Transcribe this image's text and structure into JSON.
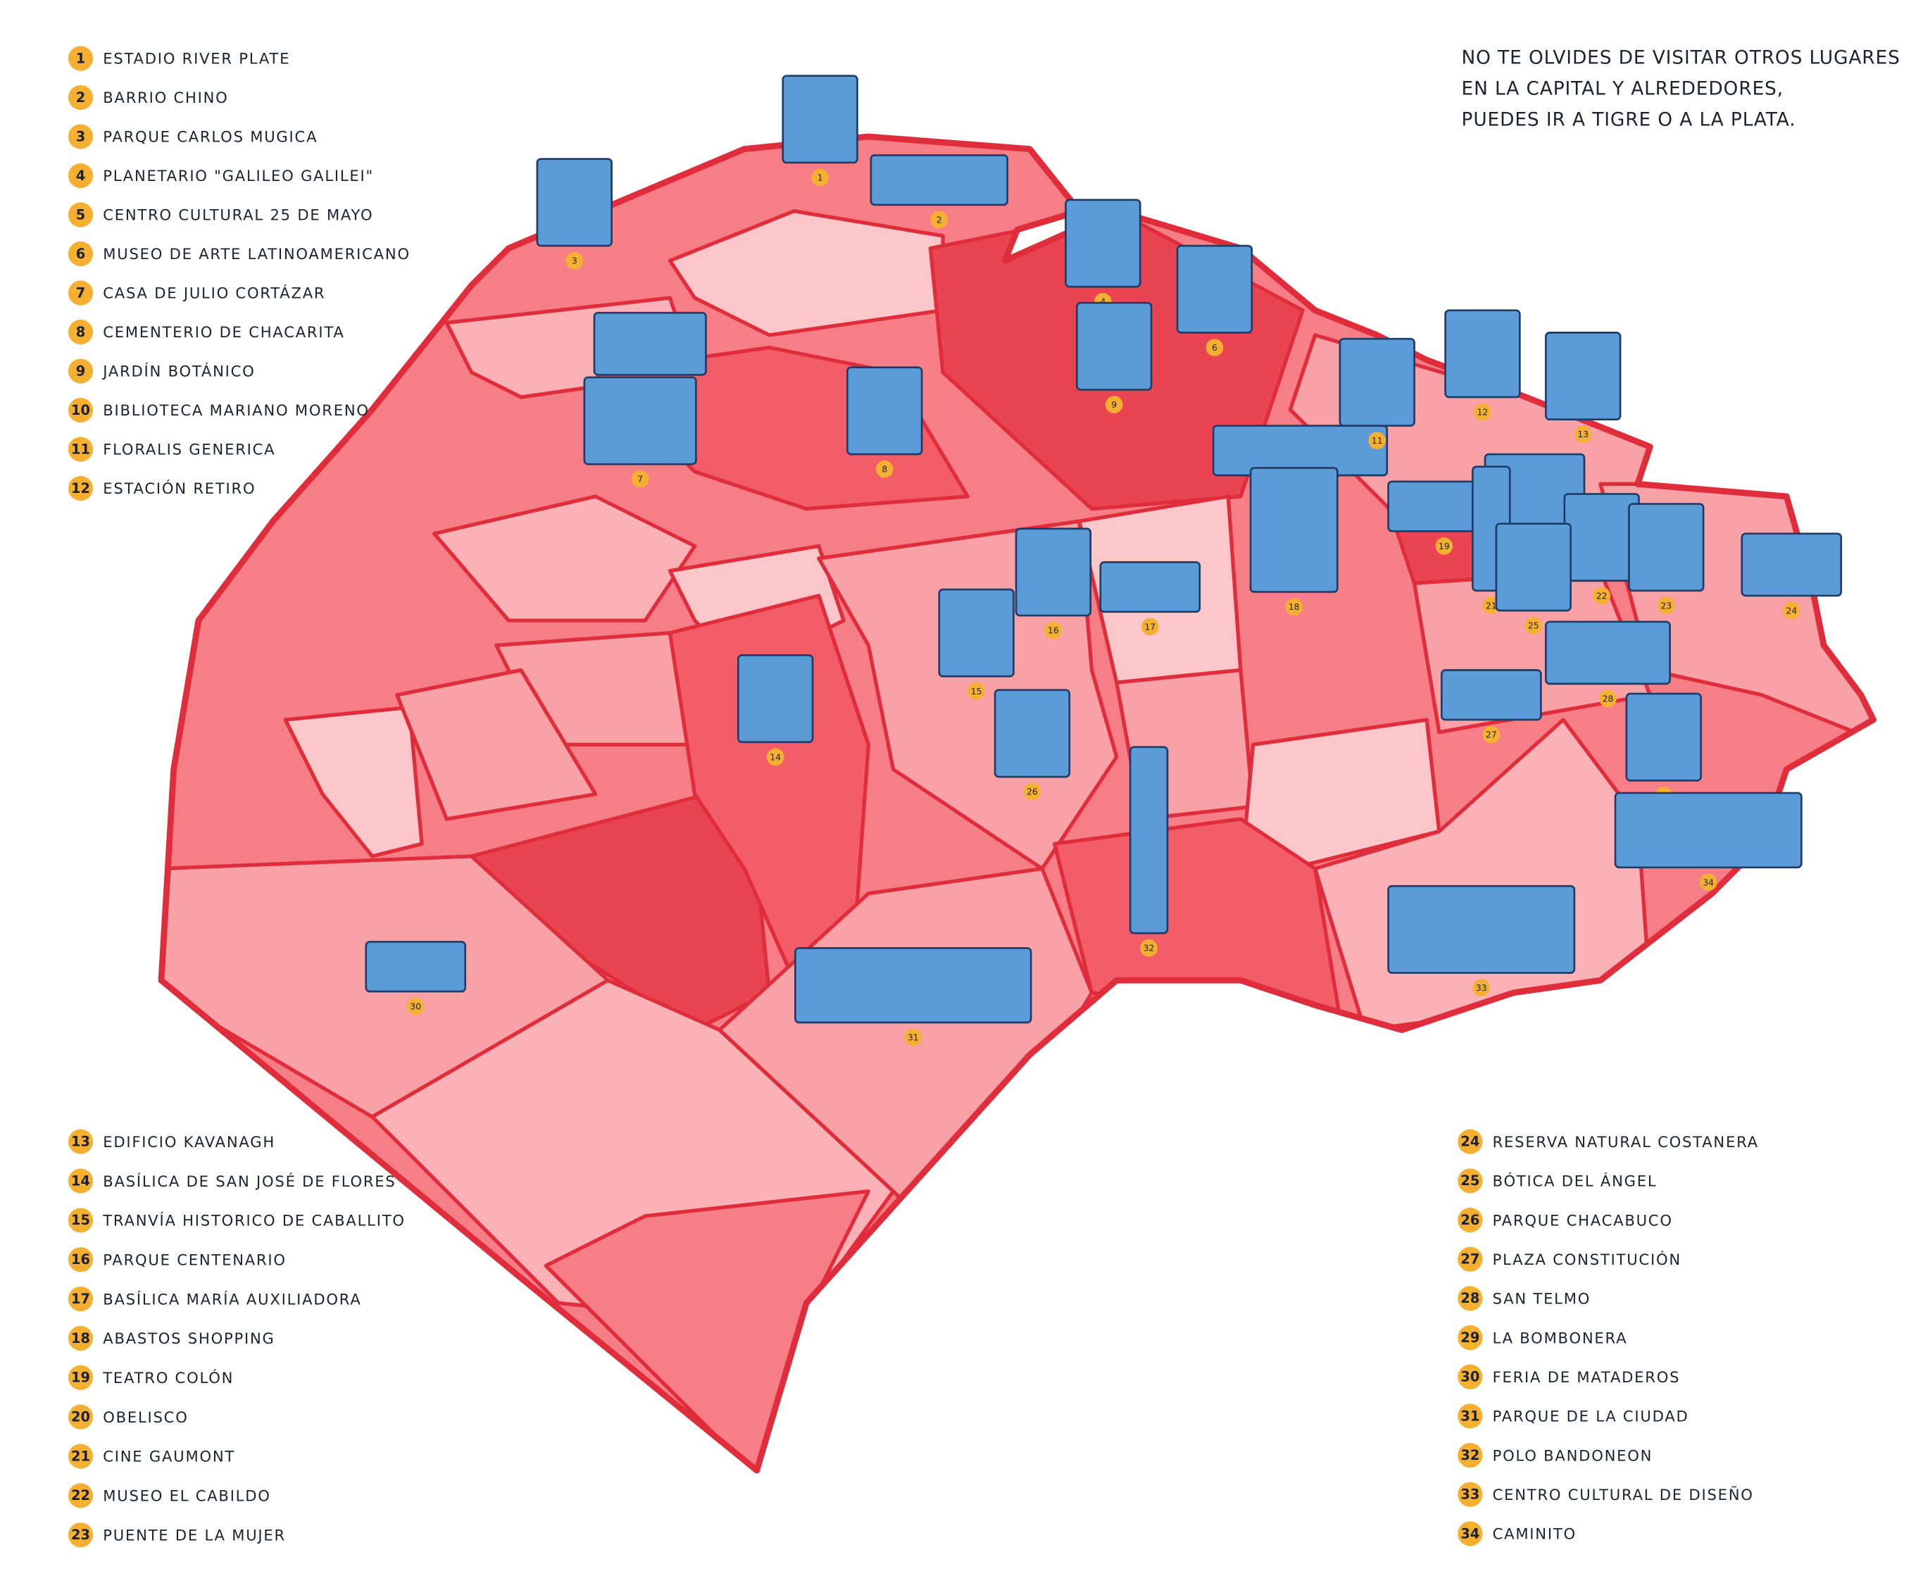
{
  "note": [
    "NO TE OLVIDES DE VISITAR OTROS LUGARES",
    "EN LA CAPITAL Y ALREDEDORES,",
    "PUEDES IR A TIGRE O A LA PLATA."
  ],
  "legend": [
    {
      "number": "1",
      "label": "ESTADIO RIVER PLATE"
    },
    {
      "number": "2",
      "label": "BARRIO CHINO"
    },
    {
      "number": "3",
      "label": "PARQUE CARLOS MUGICA"
    },
    {
      "number": "4",
      "label": "PLANETARIO \"GALILEO GALILEI\""
    },
    {
      "number": "5",
      "label": "CENTRO CULTURAL 25 DE MAYO"
    },
    {
      "number": "6",
      "label": "MUSEO DE ARTE LATINOAMERICANO"
    },
    {
      "number": "7",
      "label": "CASA DE JULIO CORTÁZAR"
    },
    {
      "number": "8",
      "label": "CEMENTERIO DE CHACARITA"
    },
    {
      "number": "9",
      "label": "JARDÍN BOTÁNICO"
    },
    {
      "number": "10",
      "label": "BIBLIOTECA MARIANO MORENO"
    },
    {
      "number": "11",
      "label": "FLORALIS GENERICA"
    },
    {
      "number": "12",
      "label": "ESTACIÓN RETIRO"
    },
    {
      "number": "13",
      "label": "EDIFICIO KAVANAGH"
    },
    {
      "number": "14",
      "label": "BASÍLICA DE SAN JOSÉ DE FLORES"
    },
    {
      "number": "15",
      "label": "TRANVÍA HISTORICO DE CABALLITO"
    },
    {
      "number": "16",
      "label": "PARQUE CENTENARIO"
    },
    {
      "number": "17",
      "label": "BASÍLICA MARÍA AUXILIADORA"
    },
    {
      "number": "18",
      "label": "ABASTOS SHOPPING"
    },
    {
      "number": "19",
      "label": "TEATRO COLÓN"
    },
    {
      "number": "20",
      "label": "OBELISCO"
    },
    {
      "number": "21",
      "label": "CINE GAUMONT"
    },
    {
      "number": "22",
      "label": "MUSEO EL CABILDO"
    },
    {
      "number": "23",
      "label": "PUENTE DE LA MUJER"
    },
    {
      "number": "24",
      "label": "RESERVA NATURAL COSTANERA"
    },
    {
      "number": "25",
      "label": "BÓTICA DEL ÁNGEL"
    },
    {
      "number": "26",
      "label": "PARQUE CHACABUCO"
    },
    {
      "number": "27",
      "label": "PLAZA CONSTITUCIÓN"
    },
    {
      "number": "28",
      "label": "SAN TELMO"
    },
    {
      "number": "29",
      "label": "LA BOMBONERA"
    },
    {
      "number": "30",
      "label": "FERIA DE MATADEROS"
    },
    {
      "number": "31",
      "label": "PARQUE DE LA CIUDAD"
    },
    {
      "number": "32",
      "label": "POLO BANDONEON"
    },
    {
      "number": "33",
      "label": "CENTRO CULTURAL DE DISEÑO"
    },
    {
      "number": "34",
      "label": "CAMINITO"
    }
  ]
}
